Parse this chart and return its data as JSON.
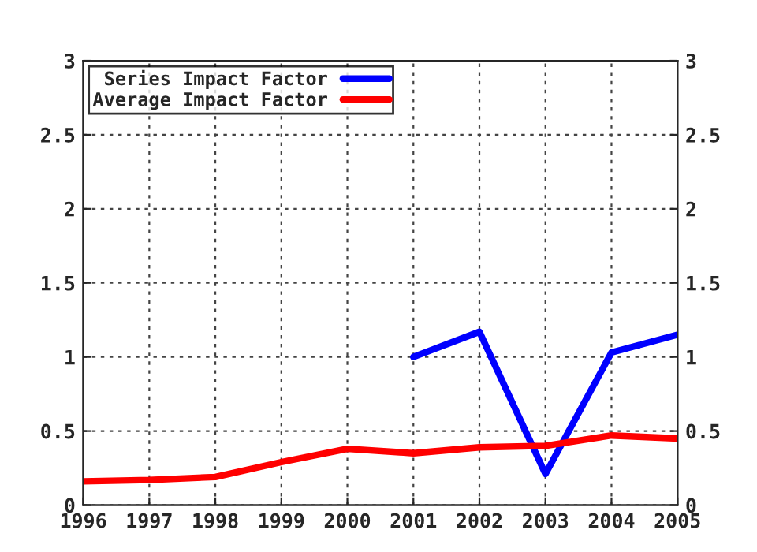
{
  "chart_data": {
    "type": "line",
    "x": [
      1996,
      1997,
      1998,
      1999,
      2000,
      2001,
      2002,
      2003,
      2004,
      2005
    ],
    "series": [
      {
        "name": "Series Impact Factor",
        "color": "#0000ff",
        "values": [
          null,
          null,
          null,
          null,
          null,
          1.0,
          1.17,
          0.21,
          1.03,
          1.15
        ]
      },
      {
        "name": "Average Impact Factor",
        "color": "#ff0000",
        "values": [
          0.16,
          0.17,
          0.19,
          0.29,
          0.38,
          0.35,
          0.39,
          0.4,
          0.47,
          0.45
        ]
      }
    ],
    "xlim": [
      1996,
      2005
    ],
    "xticks": [
      1996,
      1997,
      1998,
      1999,
      2000,
      2001,
      2002,
      2003,
      2004,
      2005
    ],
    "ylim": [
      0,
      3
    ],
    "yticks": [
      0,
      {
        "value": 0.5,
        "label": "0.5"
      },
      1,
      {
        "value": 1.5,
        "label": "1.5"
      },
      2,
      {
        "value": 2.5,
        "label": "2.5"
      },
      3
    ],
    "y2lim": [
      0,
      3
    ],
    "y2ticks": [
      0,
      {
        "value": 0.5,
        "label": "0.5"
      },
      1,
      {
        "value": 1.5,
        "label": "1.5"
      },
      2,
      {
        "value": 2.5,
        "label": "2.5"
      },
      3
    ],
    "grid": true,
    "legend": "top left",
    "line_style": "solid",
    "marker": "none"
  }
}
